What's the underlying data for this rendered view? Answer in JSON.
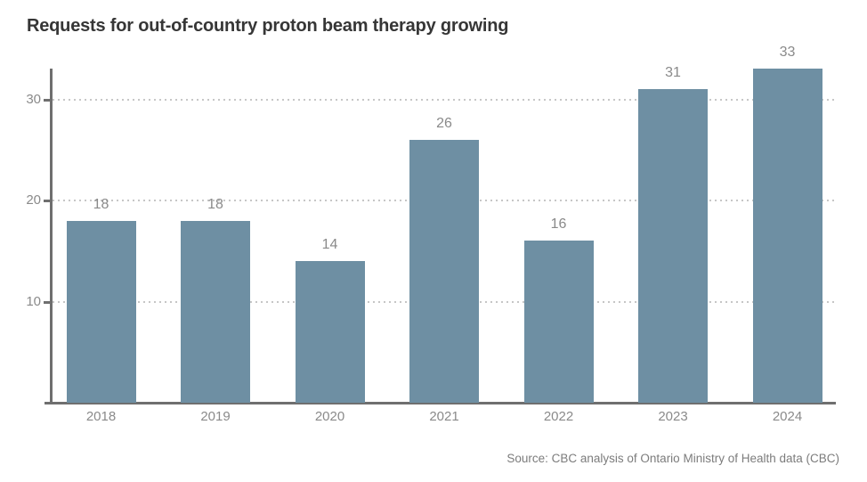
{
  "title": "Requests for out-of-country proton beam therapy growing",
  "source": "Source: CBC analysis of Ontario Ministry of Health data (CBC)",
  "colors": {
    "bar": "#6e8fa3",
    "axis": "#6f6f6f",
    "grid": "#c6c6c6",
    "label": "#8a8a8a",
    "title": "#363636",
    "source": "#7c7c7c"
  },
  "chart_data": {
    "type": "bar",
    "categories": [
      "2018",
      "2019",
      "2020",
      "2021",
      "2022",
      "2023",
      "2024"
    ],
    "values": [
      18,
      18,
      14,
      26,
      16,
      31,
      33
    ],
    "title": "Requests for out-of-country proton beam therapy growing",
    "xlabel": "",
    "ylabel": "",
    "ylim": [
      0,
      33.2
    ],
    "yticks": [
      10,
      20,
      30
    ],
    "grid": "horizontal-dotted",
    "bar_value_labels": true,
    "legend": "none"
  }
}
